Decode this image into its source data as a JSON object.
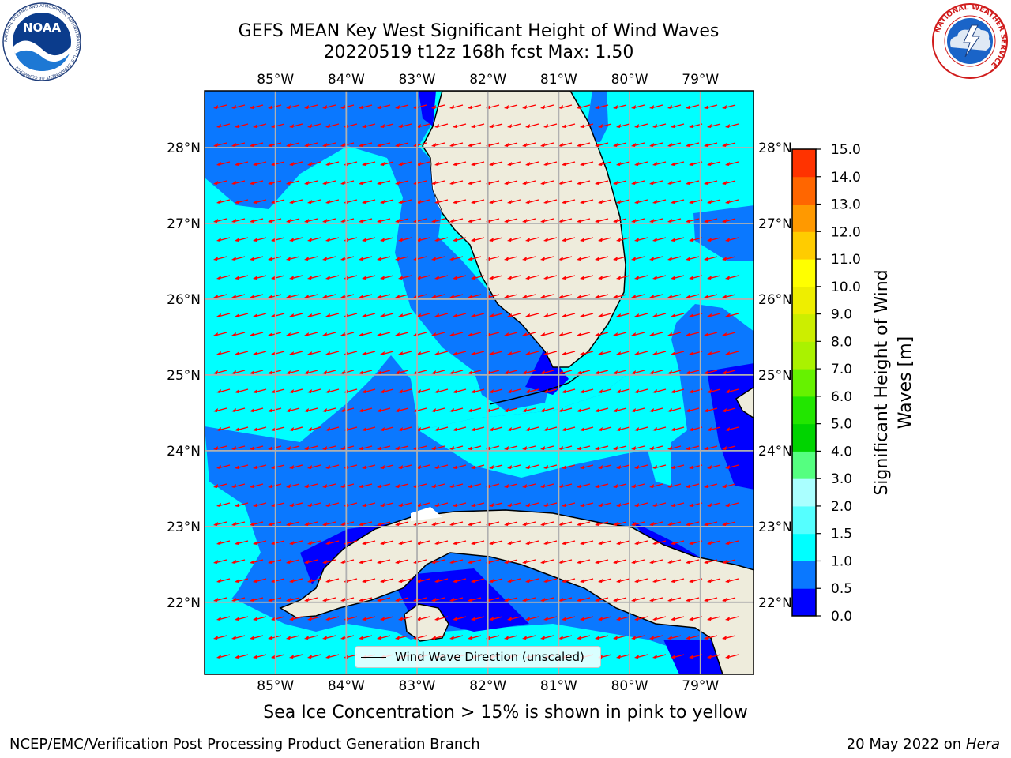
{
  "header": {
    "title_line1": "GEFS MEAN Key West Significant Height of Wind Waves",
    "title_line2": "20220519 t12z 168h fcst   Max: 1.50"
  },
  "logos": {
    "noaa": {
      "name": "noaa-logo",
      "text": "NOAA",
      "ring_text": "NATIONAL OCEANIC AND ATMOSPHERIC ADMINISTRATION · U.S. DEPARTMENT OF COMMERCE"
    },
    "nws": {
      "name": "nws-logo",
      "ring_text": "NATIONAL WEATHER SERVICE"
    }
  },
  "map": {
    "lon_labels": [
      "85°W",
      "84°W",
      "83°W",
      "82°W",
      "81°W",
      "80°W",
      "79°W"
    ],
    "lat_labels": [
      "28°N",
      "27°N",
      "26°N",
      "25°N",
      "24°N",
      "23°N",
      "22°N"
    ],
    "lon_values": [
      -85,
      -84,
      -83,
      -82,
      -81,
      -80,
      -79
    ],
    "lat_values": [
      28,
      27,
      26,
      25,
      24,
      23,
      22
    ],
    "extent": {
      "lon_min": -86,
      "lon_max": -78.25,
      "lat_min": 21.05,
      "lat_max": 28.75
    },
    "arrow_direction": "toward west-southwest",
    "land_color": "#eeecdc",
    "arrow_color": "#ff0000"
  },
  "legend": {
    "label": "Wind Wave Direction (unscaled)"
  },
  "colorbar": {
    "label": "Significant Height of Wind Waves [m]",
    "tick_labels": [
      "0.0",
      "0.5",
      "1.0",
      "1.5",
      "2.0",
      "3.0",
      "4.0",
      "5.0",
      "6.0",
      "7.0",
      "8.0",
      "9.0",
      "10.0",
      "11.0",
      "12.0",
      "13.0",
      "14.0",
      "15.0"
    ],
    "colors": [
      "#0000ff",
      "#0a78ff",
      "#00ffff",
      "#55ffff",
      "#aaffff",
      "#55ff80",
      "#00d400",
      "#22e600",
      "#66f200",
      "#aaf200",
      "#ccee00",
      "#eeee00",
      "#ffff00",
      "#ffcc00",
      "#ff9900",
      "#ff6600",
      "#ff3300",
      "#ff0000"
    ]
  },
  "footer": {
    "left": "NCEP/EMC/Verification Post Processing Product Generation Branch",
    "right_date": "20 May 2022 on",
    "right_host": "Hera",
    "ice_note": "Sea Ice Concentration > 15% is shown in pink to yellow"
  }
}
